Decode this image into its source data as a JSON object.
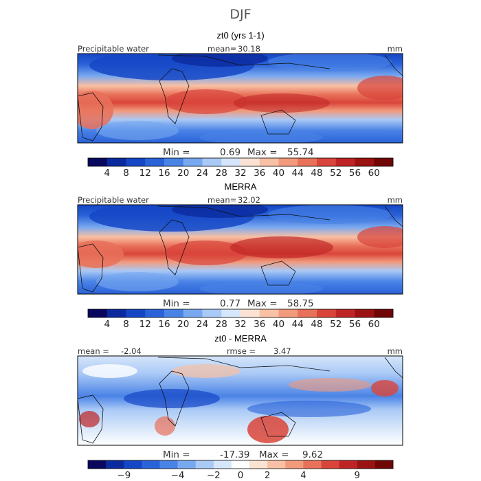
{
  "figure": {
    "title": "DJF"
  },
  "colors": {
    "precip_scale": [
      "#08085e",
      "#0b2a9e",
      "#1546c6",
      "#2a62d8",
      "#4a83e6",
      "#78a8f0",
      "#a9c9f6",
      "#d6e6fa",
      "#fbe2d2",
      "#f8c0a4",
      "#f29a7c",
      "#e8715a",
      "#d9453a",
      "#bf2424",
      "#9b1212",
      "#700606"
    ],
    "diff_scale": [
      "#08085e",
      "#0b2a9e",
      "#1546c6",
      "#2a62d8",
      "#4a83e6",
      "#78a8f0",
      "#a9c9f6",
      "#d6e6fa",
      "#ffffff",
      "#fbe2d2",
      "#f8c0a4",
      "#f29a7c",
      "#e8715a",
      "#d9453a",
      "#bf2424",
      "#9b1212",
      "#700606"
    ]
  },
  "chart_data": [
    {
      "type": "heatmap",
      "title": "zt0 (yrs 1-1)",
      "variable": "Precipitable water",
      "units": "mm",
      "mean_label": "mean=",
      "mean": "30.18",
      "min_label": "Min =",
      "min": "0.69",
      "max_label": "Max =",
      "max": "55.74",
      "colorbar_ticks": [
        "4",
        "8",
        "12",
        "16",
        "20",
        "24",
        "28",
        "32",
        "36",
        "40",
        "44",
        "48",
        "52",
        "56",
        "60"
      ]
    },
    {
      "type": "heatmap",
      "title": "MERRA",
      "variable": "Precipitable water",
      "units": "mm",
      "mean_label": "mean=",
      "mean": "32.02",
      "min_label": "Min =",
      "min": "0.77",
      "max_label": "Max =",
      "max": "58.75",
      "colorbar_ticks": [
        "4",
        "8",
        "12",
        "16",
        "20",
        "24",
        "28",
        "32",
        "36",
        "40",
        "44",
        "48",
        "52",
        "56",
        "60"
      ]
    },
    {
      "type": "heatmap",
      "title": "zt0 - MERRA",
      "units": "mm",
      "mean_label": "mean =",
      "mean": "-2.04",
      "rmse_label": "rmse =",
      "rmse": "3.47",
      "min_label": "Min =",
      "min": "-17.39",
      "max_label": "Max =",
      "max": "9.62",
      "colorbar_ticks": [
        "−9",
        "−4",
        "−2",
        "0",
        "2",
        "4",
        "9"
      ]
    }
  ]
}
